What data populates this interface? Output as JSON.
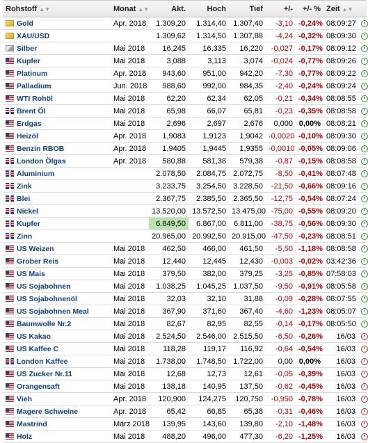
{
  "headers": {
    "rohstoff": "Rohstoff",
    "monat": "Monat",
    "akt": "Akt.",
    "hoch": "Hoch",
    "tief": "Tief",
    "chg": "+/-",
    "pct": "+/- %",
    "zeit": "Zeit"
  },
  "rows": [
    {
      "flag": "gold",
      "name": "Gold",
      "monat": "Apr. 2018",
      "akt": "1.309,20",
      "hoch": "1.314,40",
      "tief": "1.307,40",
      "chg": "-3,10",
      "pct": "-0,24%",
      "zeit": "08:09:27",
      "status": "open"
    },
    {
      "flag": "gold",
      "name": "XAU/USD",
      "monat": "",
      "akt": "1.309,62",
      "hoch": "1.314,50",
      "tief": "1.307,88",
      "chg": "-4,24",
      "pct": "-0,32%",
      "zeit": "08:09:30",
      "status": "open"
    },
    {
      "flag": "silver",
      "name": "Silber",
      "monat": "Mai 2018",
      "akt": "16,245",
      "hoch": "16,335",
      "tief": "16,220",
      "chg": "-0,027",
      "pct": "-0,17%",
      "zeit": "08:09:12",
      "status": "open"
    },
    {
      "flag": "us",
      "name": "Kupfer",
      "monat": "Mai 2018",
      "akt": "3,088",
      "hoch": "3,113",
      "tief": "3,074",
      "chg": "-0,024",
      "pct": "-0,77%",
      "zeit": "08:09:26",
      "status": "open"
    },
    {
      "flag": "us",
      "name": "Platinum",
      "monat": "Apr. 2018",
      "akt": "943,60",
      "hoch": "951,00",
      "tief": "942,20",
      "chg": "-7,30",
      "pct": "-0,77%",
      "zeit": "08:09:22",
      "status": "open"
    },
    {
      "flag": "us",
      "name": "Palladium",
      "monat": "Jun. 2018",
      "akt": "988,60",
      "hoch": "992,00",
      "tief": "984,35",
      "chg": "-2,40",
      "pct": "-0,24%",
      "zeit": "08:09:24",
      "status": "open"
    },
    {
      "flag": "us",
      "name": "WTI Rohöl",
      "monat": "Mai 2018",
      "akt": "62,20",
      "hoch": "62,34",
      "tief": "62,05",
      "chg": "-0,21",
      "pct": "-0,34%",
      "zeit": "08:08:55",
      "status": "open"
    },
    {
      "flag": "gb",
      "name": "Brent Öl",
      "monat": "Mai 2018",
      "akt": "65,98",
      "hoch": "66,07",
      "tief": "65,81",
      "chg": "-0,23",
      "pct": "-0,35%",
      "zeit": "08:08:58",
      "status": "open"
    },
    {
      "flag": "us",
      "name": "Erdgas",
      "monat": "Mai 2018",
      "akt": "2,696",
      "hoch": "2,697",
      "tief": "2,676",
      "chg": "0,000",
      "pct": "0,00%",
      "zeit": "08:08:21",
      "status": "open"
    },
    {
      "flag": "us",
      "name": "Heizöl",
      "monat": "Apr. 2018",
      "akt": "1,9083",
      "hoch": "1,9123",
      "tief": "1,9042",
      "chg": "-0,0020",
      "pct": "-0,10%",
      "zeit": "08:09:30",
      "status": "open"
    },
    {
      "flag": "us",
      "name": "Benzin RBOB",
      "monat": "Apr. 2018",
      "akt": "1,9405",
      "hoch": "1,9445",
      "tief": "1,9355",
      "chg": "-0,0010",
      "pct": "-0,05%",
      "zeit": "08:09:06",
      "status": "open"
    },
    {
      "flag": "gb",
      "name": "London Ölgas",
      "monat": "Apr. 2018",
      "akt": "580,88",
      "hoch": "581,38",
      "tief": "579,38",
      "chg": "-0,87",
      "pct": "-0,15%",
      "zeit": "08:08:58",
      "status": "open"
    },
    {
      "flag": "gb",
      "name": "Aluminium",
      "monat": "",
      "akt": "2.078,50",
      "hoch": "2.084,75",
      "tief": "2.072,75",
      "chg": "-8,50",
      "pct": "-0,41%",
      "zeit": "08:07:48",
      "status": "open"
    },
    {
      "flag": "gb",
      "name": "Zink",
      "monat": "",
      "akt": "3.233,75",
      "hoch": "3.254,50",
      "tief": "3.228,50",
      "chg": "-21,50",
      "pct": "-0,66%",
      "zeit": "08:09:16",
      "status": "open"
    },
    {
      "flag": "gb",
      "name": "Blei",
      "monat": "",
      "akt": "2.367,75",
      "hoch": "2.385,50",
      "tief": "2.365,50",
      "chg": "-12,75",
      "pct": "-0,54%",
      "zeit": "08:07:24",
      "status": "open"
    },
    {
      "flag": "gb",
      "name": "Nickel",
      "monat": "",
      "akt": "13.520,00",
      "hoch": "13.572,50",
      "tief": "13.475,00",
      "chg": "-75,00",
      "pct": "-0,55%",
      "zeit": "08:09:20",
      "status": "open"
    },
    {
      "flag": "gb",
      "name": "Kupfer",
      "monat": "",
      "akt": "6.849,50",
      "hoch": "6.867,00",
      "tief": "6.811,00",
      "chg": "-38,75",
      "pct": "-0,56%",
      "zeit": "08:09:30",
      "status": "open",
      "highlight": true
    },
    {
      "flag": "gb",
      "name": "Zinn",
      "monat": "",
      "akt": "20.965,00",
      "hoch": "20.992,50",
      "tief": "20.915,00",
      "chg": "-47,50",
      "pct": "-0,23%",
      "zeit": "08:08:51",
      "status": "open"
    },
    {
      "flag": "us",
      "name": "US Weizen",
      "monat": "Mai 2018",
      "akt": "462,50",
      "hoch": "466,00",
      "tief": "461,50",
      "chg": "-5,50",
      "pct": "-1,18%",
      "zeit": "08:08:58",
      "status": "open"
    },
    {
      "flag": "us",
      "name": "Grober Reis",
      "monat": "Mai 2018",
      "akt": "12,440",
      "hoch": "12,445",
      "tief": "12,430",
      "chg": "-0,003",
      "pct": "-0,02%",
      "zeit": "03:42:36",
      "status": "open"
    },
    {
      "flag": "us",
      "name": "US Mais",
      "monat": "Mai 2018",
      "akt": "379,50",
      "hoch": "382,00",
      "tief": "379,25",
      "chg": "-3,25",
      "pct": "-0,85%",
      "zeit": "07:58:03",
      "status": "open"
    },
    {
      "flag": "us",
      "name": "US Sojabohnen",
      "monat": "Mai 2018",
      "akt": "1.038,25",
      "hoch": "1.045,25",
      "tief": "1.037,50",
      "chg": "-9,50",
      "pct": "-0,91%",
      "zeit": "08:05:58",
      "status": "open"
    },
    {
      "flag": "us",
      "name": "US Sojabohnenöl",
      "monat": "Mai 2018",
      "akt": "32,03",
      "hoch": "32,10",
      "tief": "31,88",
      "chg": "-0,09",
      "pct": "-0,28%",
      "zeit": "08:07:55",
      "status": "open"
    },
    {
      "flag": "us",
      "name": "US Sojabohnen Meal",
      "monat": "Mai 2018",
      "akt": "367,90",
      "hoch": "371,60",
      "tief": "367,40",
      "chg": "-4,60",
      "pct": "-1,23%",
      "zeit": "08:05:07",
      "status": "open"
    },
    {
      "flag": "us",
      "name": "Baumwolle Nr.2",
      "monat": "Mai 2018",
      "akt": "82,67",
      "hoch": "82,95",
      "tief": "82,55",
      "chg": "-0,14",
      "pct": "-0,17%",
      "zeit": "08:05:50",
      "status": "open"
    },
    {
      "flag": "us",
      "name": "US Kakao",
      "monat": "Mai 2018",
      "akt": "2.524,50",
      "hoch": "2.546,00",
      "tief": "2.515,50",
      "chg": "-6,50",
      "pct": "-0,26%",
      "zeit": "16/03",
      "status": "closed"
    },
    {
      "flag": "us",
      "name": "US Kaffee C",
      "monat": "Mai 2018",
      "akt": "118,28",
      "hoch": "119,17",
      "tief": "116,92",
      "chg": "-0,64",
      "pct": "-0,54%",
      "zeit": "16/03",
      "status": "closed"
    },
    {
      "flag": "gb",
      "name": "London Kaffee",
      "monat": "Mai 2018",
      "akt": "1.738,00",
      "hoch": "1.748,50",
      "tief": "1.722,00",
      "chg": "0,00",
      "pct": "0,00%",
      "zeit": "16/03",
      "status": "closed"
    },
    {
      "flag": "us",
      "name": "US Zucker Nr.11",
      "monat": "Mai 2018",
      "akt": "12,68",
      "hoch": "12,73",
      "tief": "12,61",
      "chg": "-0,05",
      "pct": "-0,39%",
      "zeit": "16/03",
      "status": "closed"
    },
    {
      "flag": "us",
      "name": "Orangensaft",
      "monat": "Mai 2018",
      "akt": "138,18",
      "hoch": "140,95",
      "tief": "137,50",
      "chg": "-0,62",
      "pct": "-0,45%",
      "zeit": "16/03",
      "status": "closed"
    },
    {
      "flag": "us",
      "name": "Vieh",
      "monat": "Apr. 2018",
      "akt": "120,900",
      "hoch": "124,275",
      "tief": "120,750",
      "chg": "-0,950",
      "pct": "-0,78%",
      "zeit": "16/03",
      "status": "closed"
    },
    {
      "flag": "us",
      "name": "Magere Schweine",
      "monat": "Apr. 2018",
      "akt": "65,42",
      "hoch": "66,85",
      "tief": "65,38",
      "chg": "-0,31",
      "pct": "-0,46%",
      "zeit": "16/03",
      "status": "closed"
    },
    {
      "flag": "us",
      "name": "Mastrind",
      "monat": "März 2018",
      "akt": "139,95",
      "hoch": "143,60",
      "tief": "139,80",
      "chg": "-2,10",
      "pct": "-1,48%",
      "zeit": "16/03",
      "status": "closed"
    },
    {
      "flag": "us",
      "name": "Holz",
      "monat": "Mai 2018",
      "akt": "488,20",
      "hoch": "496,00",
      "tief": "477,30",
      "chg": "-6,20",
      "pct": "-1,25%",
      "zeit": "16/03",
      "status": "closed"
    }
  ]
}
